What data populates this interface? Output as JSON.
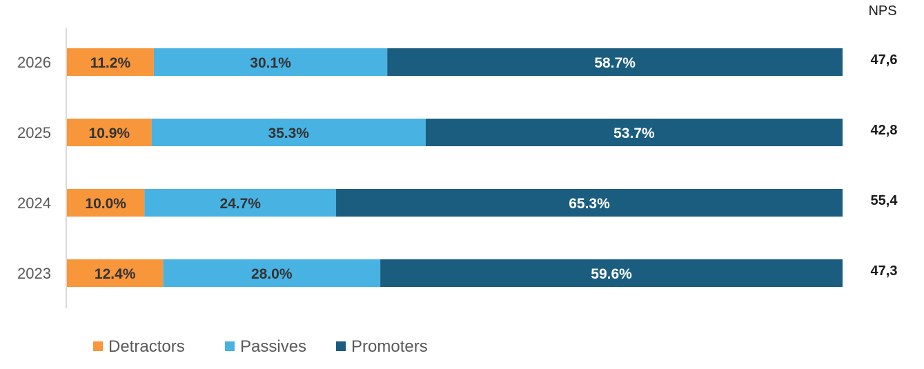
{
  "chart_data": {
    "type": "bar",
    "orientation": "horizontal",
    "stacked": true,
    "percent_stacked": true,
    "categories": [
      "2026",
      "2025",
      "2024",
      "2023"
    ],
    "series": [
      {
        "name": "Detractors",
        "color": "#F7963A",
        "label_color": "#333333",
        "values": [
          11.2,
          10.9,
          10.0,
          12.4
        ],
        "labels": [
          "11.2%",
          "10.9%",
          "10.0%",
          "12.4%"
        ]
      },
      {
        "name": "Passives",
        "color": "#48B2E2",
        "label_color": "#333333",
        "values": [
          30.1,
          35.3,
          24.7,
          28.0
        ],
        "labels": [
          "30.1%",
          "35.3%",
          "24.7%",
          "28.0%"
        ]
      },
      {
        "name": "Promoters",
        "color": "#1A5D7F",
        "label_color": "#ffffff",
        "values": [
          58.7,
          53.7,
          65.3,
          59.6
        ],
        "labels": [
          "58.7%",
          "53.7%",
          "65.3%",
          "59.6%"
        ]
      }
    ],
    "nps": {
      "header": "NPS",
      "values": [
        "47,6",
        "42,8",
        "55,4",
        "47,3"
      ]
    },
    "legend_position": "bottom-left",
    "grid": false
  }
}
